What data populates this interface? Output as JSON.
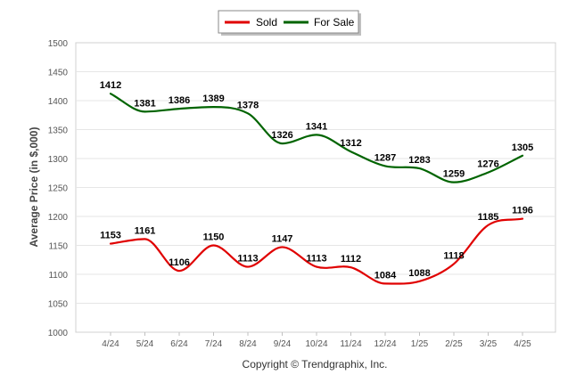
{
  "chart_data": {
    "type": "line",
    "categories": [
      "4/24",
      "5/24",
      "6/24",
      "7/24",
      "8/24",
      "9/24",
      "10/24",
      "11/24",
      "12/24",
      "1/25",
      "2/25",
      "3/25",
      "4/25"
    ],
    "series": [
      {
        "name": "Sold",
        "color": "#e00000",
        "values": [
          1153,
          1161,
          1106,
          1150,
          1113,
          1147,
          1113,
          1112,
          1084,
          1088,
          1118,
          1185,
          1196
        ]
      },
      {
        "name": "For Sale",
        "color": "#006400",
        "values": [
          1412,
          1381,
          1386,
          1389,
          1378,
          1326,
          1341,
          1312,
          1287,
          1283,
          1259,
          1276,
          1305
        ]
      }
    ],
    "xlabel": "",
    "ylabel": "Average Price (in $,000)",
    "ylim": [
      1000,
      1500
    ],
    "yticks": [
      "1000",
      "1050",
      "1100",
      "1150",
      "1200",
      "1250",
      "1300",
      "1350",
      "1400",
      "1450",
      "1500"
    ],
    "grid": true,
    "legend_position": "top-center",
    "data_labels": true
  },
  "footer": {
    "copyright": "Copyright © Trendgraphix, Inc."
  }
}
